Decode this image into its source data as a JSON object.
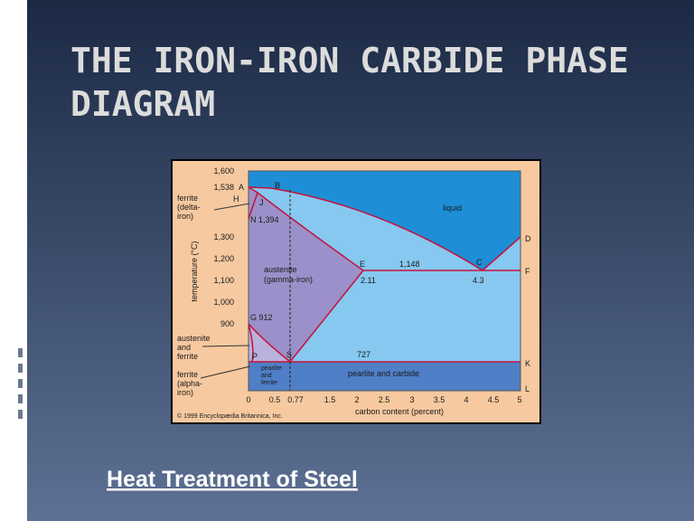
{
  "slide": {
    "title_lines": [
      "THE IRON-IRON CARBIDE PHASE",
      "DIAGRAM"
    ],
    "subtitle": "Heat Treatment of Steel"
  },
  "diagram": {
    "y_axis_label": "temperature (°C)",
    "x_axis_label": "carbon content (percent)",
    "y_ticks": [
      "1,600",
      "1,538",
      "1,300",
      "1,200",
      "1,100",
      "1,000",
      "900"
    ],
    "x_ticks": [
      "0",
      "0.5",
      "0.77",
      "1.5",
      "2",
      "2.5",
      "3",
      "3.5",
      "4",
      "4.5",
      "5"
    ],
    "points": [
      "A",
      "B",
      "H",
      "J",
      "N",
      "1,394",
      "E",
      "1,148",
      "C",
      "D",
      "F",
      "2.11",
      "4.3",
      "G 912",
      "S",
      "727",
      "P",
      "K",
      "L"
    ],
    "regions": {
      "liquid": "liquid",
      "austenite": [
        "austenite",
        "(gamma-iron)"
      ],
      "delta_ferrite": [
        "ferrite",
        "(delta-",
        "iron)"
      ],
      "austenite_ferrite": [
        "austenite",
        "and",
        "ferrite"
      ],
      "alpha_ferrite": [
        "ferrite",
        "(alpha-",
        "iron)"
      ],
      "pearlite_ferrite": [
        "pearlite",
        "and",
        "ferrite"
      ],
      "pearlite_carbide": "pearlite and carbide"
    },
    "credit": "© 1999 Encyclopædia Britannica, Inc."
  }
}
